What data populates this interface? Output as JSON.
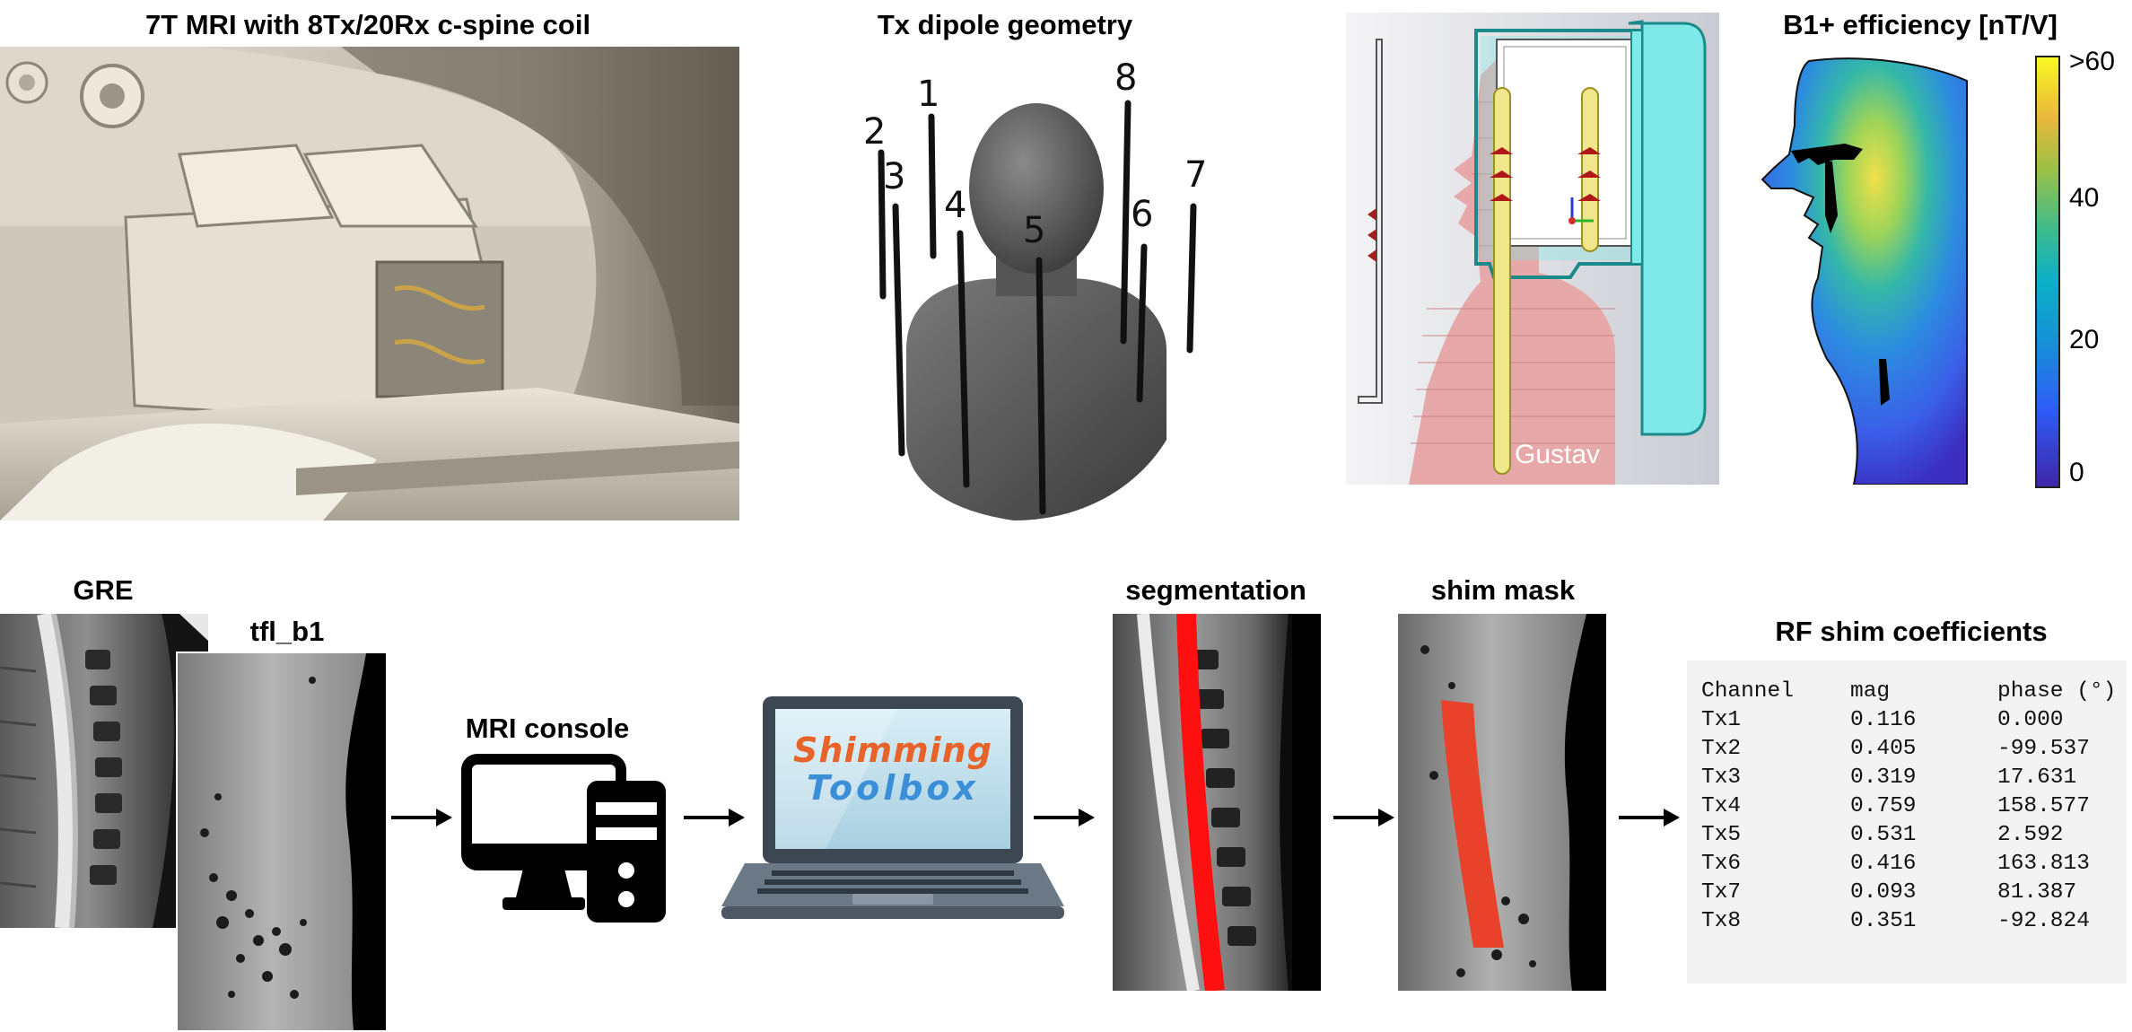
{
  "titles": {
    "mri_photo": "7T MRI with 8Tx/20Rx c-spine coil",
    "dipole": "Tx dipole geometry",
    "b1": "B1+ efficiency [nT/V]",
    "gre": "GRE",
    "tfl": "tfl_b1",
    "console": "MRI console",
    "segmentation": "segmentation",
    "shim_mask": "shim mask",
    "rf_shim": "RF shim coefficients"
  },
  "dipole_labels": [
    "1",
    "2",
    "3",
    "4",
    "5",
    "6",
    "7",
    "8"
  ],
  "simulation": {
    "model_name": "Gustav"
  },
  "colorbar": {
    "ticks": [
      ">60",
      "40",
      "20",
      "0"
    ],
    "colormap": "parula"
  },
  "logo": {
    "line1": "Shimming",
    "line2": "Toolbox"
  },
  "rf_table": {
    "headers": [
      "Channel",
      "mag",
      "phase (°)"
    ],
    "rows": [
      [
        "Tx1",
        "0.116",
        "0.000"
      ],
      [
        "Tx2",
        "0.405",
        "-99.537"
      ],
      [
        "Tx3",
        "0.319",
        "17.631"
      ],
      [
        "Tx4",
        "0.759",
        "158.577"
      ],
      [
        "Tx5",
        "0.531",
        "2.592"
      ],
      [
        "Tx6",
        "0.416",
        "163.813"
      ],
      [
        "Tx7",
        "0.093",
        "81.387"
      ],
      [
        "Tx8",
        "0.351",
        "-92.824"
      ]
    ]
  },
  "colors": {
    "segmentation": "#ff1010",
    "shim_mask": "#e8432a",
    "coil_housing": "#7fe8e8",
    "logo_orange": "#e8632a",
    "logo_blue": "#3a8fd8"
  }
}
